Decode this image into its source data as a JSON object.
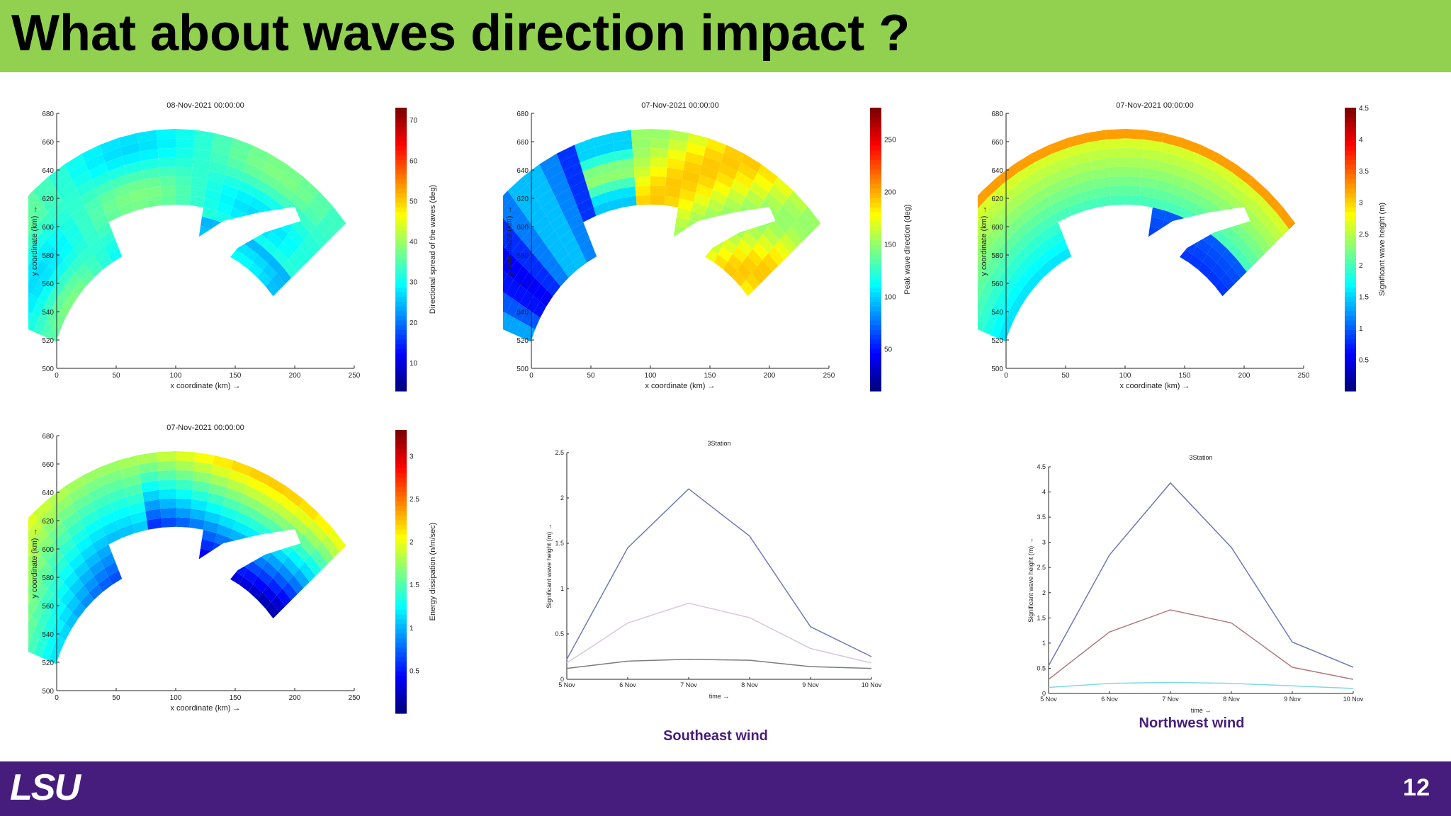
{
  "slide": {
    "title": "What about waves direction impact ?",
    "page_number": "12",
    "logo_text": "LSU",
    "header_color": "#92d050",
    "footer_color": "#461d7c"
  },
  "captions": {
    "left": "Southeast wind",
    "right": "Northwest wind"
  },
  "chart_data": [
    {
      "type": "heatmap",
      "title": "08-Nov-2021 00:00:00",
      "xlabel": "x coordinate (km) →",
      "ylabel": "y coordinate (km) →",
      "xticks": [
        0,
        50,
        100,
        150,
        200,
        250
      ],
      "yticks": [
        500,
        520,
        540,
        560,
        580,
        600,
        620,
        640,
        660,
        680
      ],
      "colorbar_label": "Directional spread of the waves (deg)",
      "colorbar_ticks": [
        10,
        20,
        30,
        40,
        50,
        60,
        70
      ],
      "colorbar_range": [
        3,
        73
      ],
      "colormap": "jet",
      "field": "spread"
    },
    {
      "type": "heatmap",
      "title": "07-Nov-2021 00:00:00",
      "xlabel": "x coordinate (km) →",
      "ylabel": "y coordinate (km) →",
      "xticks": [
        0,
        50,
        100,
        150,
        200,
        250
      ],
      "yticks": [
        500,
        520,
        540,
        560,
        580,
        600,
        620,
        640,
        660,
        680
      ],
      "colorbar_label": "Peak wave direction (deg)",
      "colorbar_ticks": [
        50,
        100,
        150,
        200,
        250
      ],
      "colorbar_range": [
        10,
        280
      ],
      "colormap": "jet",
      "field": "direction"
    },
    {
      "type": "heatmap",
      "title": "07-Nov-2021 00:00:00",
      "xlabel": "x coordinate (km) →",
      "ylabel": "y coordinate (km) →",
      "xticks": [
        0,
        50,
        100,
        150,
        200,
        250
      ],
      "yticks": [
        500,
        520,
        540,
        560,
        580,
        600,
        620,
        640,
        660,
        680
      ],
      "colorbar_label": "Significant wave height (m)",
      "colorbar_ticks": [
        0.5,
        1,
        1.5,
        2,
        2.5,
        3,
        3.5,
        4,
        4.5
      ],
      "colorbar_range": [
        0,
        4.5
      ],
      "colormap": "jet",
      "field": "height"
    },
    {
      "type": "heatmap",
      "title": "07-Nov-2021 00:00:00",
      "xlabel": "x coordinate (km) →",
      "ylabel": "y coordinate (km) →",
      "xticks": [
        0,
        50,
        100,
        150,
        200,
        250
      ],
      "yticks": [
        500,
        520,
        540,
        560,
        580,
        600,
        620,
        640,
        660,
        680
      ],
      "colorbar_label": "Energy dissipation (n/m/sec)",
      "colorbar_ticks": [
        0.5,
        1,
        1.5,
        2,
        2.5,
        3
      ],
      "colorbar_range": [
        0,
        3.3
      ],
      "colormap": "jet",
      "field": "dissipation"
    },
    {
      "type": "line",
      "title": "3Station",
      "xlabel": "time →",
      "ylabel": "Significant wave height (m) →",
      "x": [
        "5 Nov",
        "6 Nov",
        "7 Nov",
        "8 Nov",
        "9 Nov",
        "10 Nov"
      ],
      "yticks": [
        0,
        0.5,
        1,
        1.5,
        2,
        2.5
      ],
      "ylim": [
        0,
        2.5
      ],
      "series": [
        {
          "values": [
            0.22,
            1.45,
            2.1,
            1.58,
            0.58,
            0.25
          ],
          "color": "#6f78b4"
        },
        {
          "values": [
            0.18,
            0.62,
            0.84,
            0.68,
            0.34,
            0.18
          ],
          "color": "#d8c8d8"
        },
        {
          "values": [
            0.12,
            0.2,
            0.22,
            0.21,
            0.14,
            0.12
          ],
          "color": "#7c7c7c"
        }
      ]
    },
    {
      "type": "line",
      "title": "3Station",
      "xlabel": "time →",
      "ylabel": "Significant wave height (m) →",
      "x": [
        "5 Nov",
        "6 Nov",
        "7 Nov",
        "8 Nov",
        "9 Nov",
        "10 Nov"
      ],
      "yticks": [
        0,
        0.5,
        1,
        1.5,
        2,
        2.5,
        3,
        3.5,
        4,
        4.5
      ],
      "ylim": [
        0,
        4.5
      ],
      "series": [
        {
          "values": [
            0.55,
            2.75,
            4.18,
            2.9,
            1.02,
            0.52
          ],
          "color": "#6f78b4"
        },
        {
          "values": [
            0.28,
            1.22,
            1.66,
            1.4,
            0.52,
            0.28
          ],
          "color": "#b07a80"
        },
        {
          "values": [
            0.12,
            0.2,
            0.22,
            0.2,
            0.15,
            0.1
          ],
          "color": "#7fd8e6"
        }
      ]
    }
  ]
}
